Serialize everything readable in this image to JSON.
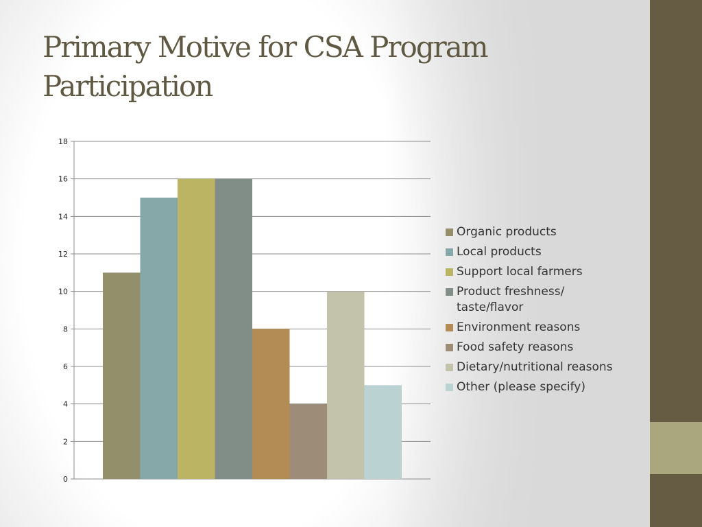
{
  "slide": {
    "title": "Primary Motive for CSA Program Participation"
  },
  "theme": {
    "sidebar_color": "#665c44",
    "sidebar_accent_color": "#aaa67e",
    "title_color": "#5f5943"
  },
  "chart_data": {
    "type": "bar",
    "title": "",
    "xlabel": "",
    "ylabel": "",
    "ylim": [
      0,
      18
    ],
    "yticks": [
      0,
      2,
      4,
      6,
      8,
      10,
      12,
      14,
      16,
      18
    ],
    "grid": true,
    "legend_position": "right",
    "series": [
      {
        "name": "Organic products",
        "value": 11,
        "color": "#938f6a"
      },
      {
        "name": "Local products",
        "value": 15,
        "color": "#87a8a8"
      },
      {
        "name": "Support local farmers",
        "value": 16,
        "color": "#bbb563"
      },
      {
        "name": "Product freshness/ taste/flavor",
        "value": 16,
        "color": "#818e87"
      },
      {
        "name": "Environment reasons",
        "value": 8,
        "color": "#b38c55"
      },
      {
        "name": "Food safety reasons",
        "value": 4,
        "color": "#9c8c78"
      },
      {
        "name": "Dietary/nutritional reasons",
        "value": 10,
        "color": "#c3c2aa"
      },
      {
        "name": "Other (please specify)",
        "value": 5,
        "color": "#bad2d2"
      }
    ]
  }
}
